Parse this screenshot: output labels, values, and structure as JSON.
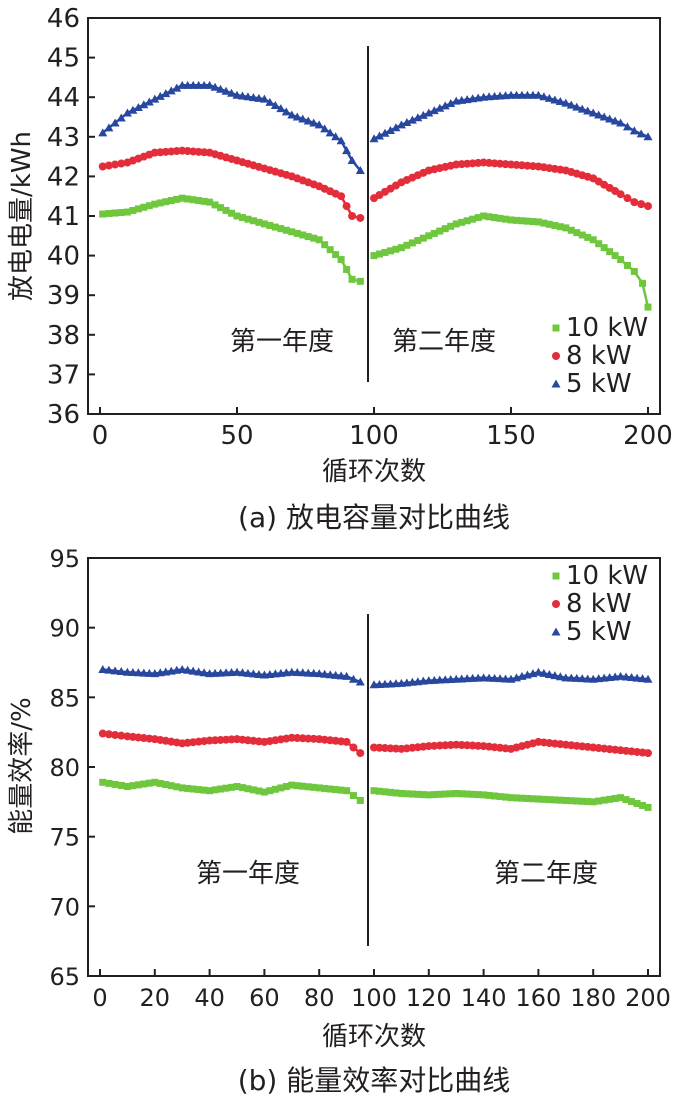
{
  "chart_data": [
    {
      "type": "scatter",
      "title": "(a) 放电容量对比曲线",
      "xlabel": "循环次数",
      "ylabel": "放电电量/kWh",
      "xlim": [
        0,
        200
      ],
      "ylim": [
        36,
        46
      ],
      "xticks": [
        0,
        50,
        100,
        150,
        200
      ],
      "yticks": [
        36,
        37,
        38,
        39,
        40,
        41,
        42,
        43,
        44,
        45,
        46
      ],
      "divider_x": 98,
      "annotations": [
        "第一年度",
        "第二年度"
      ],
      "legend_position": "bottom-right",
      "series": [
        {
          "name": "10 kW",
          "color": "#6fc73e",
          "marker": "square",
          "x": [
            1,
            10,
            20,
            30,
            40,
            50,
            60,
            70,
            80,
            88,
            92,
            95,
            100,
            110,
            120,
            130,
            140,
            150,
            160,
            170,
            180,
            190,
            195,
            198,
            200
          ],
          "y": [
            41.05,
            41.1,
            41.3,
            41.45,
            41.35,
            41.0,
            40.8,
            40.6,
            40.4,
            39.9,
            39.4,
            39.35,
            40.0,
            40.2,
            40.5,
            40.8,
            41.0,
            40.9,
            40.85,
            40.7,
            40.4,
            39.9,
            39.6,
            39.3,
            38.7
          ]
        },
        {
          "name": "8 kW",
          "color": "#e42d3b",
          "marker": "circle",
          "x": [
            1,
            10,
            20,
            30,
            40,
            50,
            60,
            70,
            80,
            88,
            92,
            95,
            100,
            110,
            120,
            130,
            140,
            150,
            160,
            170,
            180,
            190,
            195,
            200
          ],
          "y": [
            42.25,
            42.35,
            42.6,
            42.65,
            42.6,
            42.4,
            42.2,
            42.0,
            41.75,
            41.5,
            41.0,
            40.95,
            41.45,
            41.85,
            42.15,
            42.3,
            42.35,
            42.3,
            42.25,
            42.15,
            41.95,
            41.55,
            41.35,
            41.25
          ]
        },
        {
          "name": "5 kW",
          "color": "#2848a0",
          "marker": "triangle",
          "x": [
            1,
            10,
            20,
            30,
            40,
            50,
            60,
            70,
            80,
            88,
            92,
            95,
            100,
            110,
            120,
            130,
            140,
            150,
            160,
            170,
            180,
            190,
            195,
            200
          ],
          "y": [
            43.1,
            43.6,
            43.95,
            44.3,
            44.3,
            44.05,
            43.95,
            43.55,
            43.3,
            42.9,
            42.4,
            42.15,
            42.95,
            43.3,
            43.6,
            43.9,
            44.0,
            44.05,
            44.05,
            43.85,
            43.6,
            43.35,
            43.15,
            43.0
          ]
        }
      ]
    },
    {
      "type": "scatter",
      "title": "(b) 能量效率对比曲线",
      "xlabel": "循环次数",
      "ylabel": "能量效率/%",
      "xlim": [
        0,
        200
      ],
      "ylim": [
        65,
        95
      ],
      "xticks": [
        0,
        20,
        40,
        60,
        80,
        100,
        120,
        140,
        160,
        180,
        200
      ],
      "yticks": [
        65,
        70,
        75,
        80,
        85,
        90,
        95
      ],
      "divider_x": 98,
      "annotations": [
        "第一年度",
        "第二年度"
      ],
      "legend_position": "top-right",
      "series": [
        {
          "name": "10 kW",
          "color": "#6fc73e",
          "marker": "square",
          "x": [
            1,
            10,
            20,
            30,
            40,
            50,
            60,
            70,
            80,
            90,
            95,
            100,
            110,
            120,
            130,
            140,
            150,
            160,
            170,
            180,
            190,
            200
          ],
          "y": [
            78.9,
            78.6,
            78.9,
            78.5,
            78.3,
            78.6,
            78.2,
            78.7,
            78.5,
            78.3,
            77.6,
            78.3,
            78.1,
            78.0,
            78.1,
            78.0,
            77.8,
            77.7,
            77.6,
            77.5,
            77.8,
            77.1
          ]
        },
        {
          "name": "8 kW",
          "color": "#e42d3b",
          "marker": "circle",
          "x": [
            1,
            10,
            20,
            30,
            40,
            50,
            60,
            70,
            80,
            90,
            95,
            100,
            110,
            120,
            130,
            140,
            150,
            160,
            170,
            180,
            190,
            200
          ],
          "y": [
            82.4,
            82.2,
            82.0,
            81.7,
            81.9,
            82.0,
            81.8,
            82.1,
            82.0,
            81.8,
            81.0,
            81.4,
            81.3,
            81.5,
            81.6,
            81.5,
            81.3,
            81.8,
            81.6,
            81.4,
            81.2,
            81.0
          ]
        },
        {
          "name": "5 kW",
          "color": "#2848a0",
          "marker": "triangle",
          "x": [
            1,
            10,
            20,
            30,
            40,
            50,
            60,
            70,
            80,
            90,
            95,
            100,
            110,
            120,
            130,
            140,
            150,
            160,
            170,
            180,
            190,
            200
          ],
          "y": [
            87.0,
            86.8,
            86.7,
            87.0,
            86.7,
            86.8,
            86.6,
            86.8,
            86.7,
            86.5,
            86.1,
            85.9,
            86.0,
            86.2,
            86.3,
            86.4,
            86.3,
            86.8,
            86.4,
            86.3,
            86.5,
            86.3
          ]
        }
      ]
    }
  ]
}
